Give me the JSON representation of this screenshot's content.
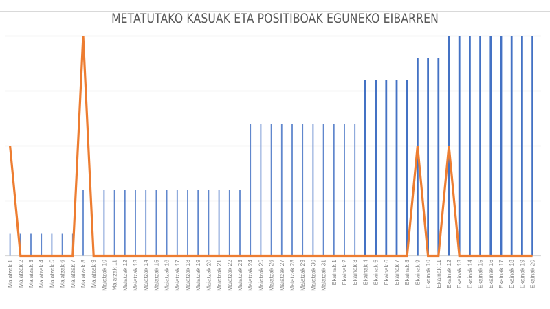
{
  "chart_data": {
    "type": "bar",
    "title": "METATUTAKO KASUAK ETA POSITIBOAK EGUNEKO EIBARREN",
    "xlabel": "",
    "ylabel": "",
    "y_axis_labels_visible": false,
    "grid": true,
    "gridline_count": 5,
    "ylim": [
      0,
      20
    ],
    "y2lim": [
      0,
      2
    ],
    "legend": "none",
    "categories": [
      "Maiatzak 1",
      "Maiatzak 2",
      "Maiatzak 3",
      "Maiatzak 4",
      "Maiatzak 5",
      "Maiatzak 6",
      "Maiatzak 7",
      "Maiatzak 8",
      "Maiatzak 9",
      "Maiatzak 10",
      "Maiatzak 11",
      "Maiatzak 12",
      "Maiatzak 13",
      "Maiatzak 14",
      "Maiatzak 15",
      "Maiatzak 16",
      "Maiatzak 17",
      "Maiatzak 18",
      "Maiatzak 19",
      "Maiatzak 20",
      "Maiatzak 21",
      "Maiatzak 22",
      "Maiatzak 23",
      "Maiatzak 24",
      "Maiatzak 25",
      "Maiatzak 26",
      "Maiatzak 27",
      "Maiatzak 28",
      "Maiatzak 29",
      "Maiatzak 30",
      "Maiatzak 31",
      "Ekainak 1",
      "Ekainak 2",
      "Ekainak 3",
      "Ekainak 4",
      "Ekainak 5",
      "Ekainak 6",
      "Ekainak 7",
      "Ekainak 8",
      "Ekainak 9",
      "Ekainak 10",
      "Ekainak 11",
      "Ekainak 12",
      "Ekainak 13",
      "Ekainak 14",
      "Ekainak 15",
      "Ekainak 16",
      "Ekainak 17",
      "Ekainak 18",
      "Ekainak 19",
      "Ekainak 20"
    ],
    "series": [
      {
        "name": "Metatutako kasuak",
        "type": "bar",
        "color": "#4472C4",
        "axis": "primary",
        "values": [
          2,
          2,
          2,
          2,
          2,
          2,
          2,
          6,
          0,
          6,
          6,
          6,
          6,
          6,
          6,
          6,
          6,
          6,
          6,
          6,
          6,
          6,
          6,
          12,
          12,
          12,
          12,
          12,
          12,
          12,
          12,
          12,
          12,
          12,
          16,
          16,
          16,
          16,
          16,
          18,
          18,
          18,
          20,
          20,
          20,
          20,
          20,
          20,
          20,
          20,
          20
        ]
      },
      {
        "name": "Positiboak eguneko",
        "type": "line",
        "color": "#ED7D31",
        "axis": "secondary",
        "values": [
          1,
          0,
          0,
          0,
          0,
          0,
          0,
          2,
          0,
          0,
          0,
          0,
          0,
          0,
          0,
          0,
          0,
          0,
          0,
          0,
          0,
          0,
          0,
          0,
          0,
          0,
          0,
          0,
          0,
          0,
          0,
          0,
          0,
          0,
          0,
          0,
          0,
          0,
          0,
          1,
          0,
          0,
          1,
          0,
          0,
          0,
          0,
          0,
          0,
          0,
          0
        ]
      }
    ]
  },
  "colors": {
    "bar": "#4472C4",
    "line": "#ED7D31",
    "grid": "#d9d9d9",
    "title": "#595959",
    "label": "#7f7f7f"
  }
}
